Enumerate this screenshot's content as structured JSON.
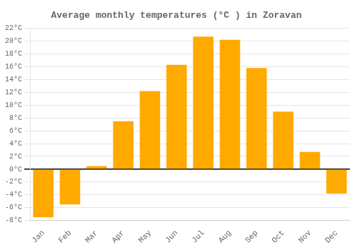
{
  "chart_data": {
    "type": "bar",
    "title": "Average monthly temperatures (°C ) in Zoravan",
    "categories": [
      "Jan",
      "Feb",
      "Mar",
      "Apr",
      "May",
      "Jun",
      "Jul",
      "Aug",
      "Sep",
      "Oct",
      "Nov",
      "Dec"
    ],
    "values": [
      -7.5,
      -5.5,
      0.5,
      7.5,
      12.2,
      16.3,
      20.7,
      20.2,
      15.8,
      9.0,
      2.7,
      -3.8
    ],
    "color": "#FFAA00",
    "ylim": [
      -8,
      22
    ],
    "yticks": [
      {
        "value": -8,
        "label": "-8°C"
      },
      {
        "value": -6,
        "label": "-6°C"
      },
      {
        "value": -4,
        "label": "-4°C"
      },
      {
        "value": -2,
        "label": "-2°C"
      },
      {
        "value": 0,
        "label": "0°C"
      },
      {
        "value": 2,
        "label": "2°C"
      },
      {
        "value": 4,
        "label": "4°C"
      },
      {
        "value": 6,
        "label": "6°C"
      },
      {
        "value": 8,
        "label": "8°C"
      },
      {
        "value": 10,
        "label": "10°C"
      },
      {
        "value": 12,
        "label": "12°C"
      },
      {
        "value": 14,
        "label": "14°C"
      },
      {
        "value": 16,
        "label": "16°C"
      },
      {
        "value": 18,
        "label": "18°C"
      },
      {
        "value": 20,
        "label": "20°C"
      },
      {
        "value": 22,
        "label": "22°C"
      }
    ],
    "grid": true
  }
}
